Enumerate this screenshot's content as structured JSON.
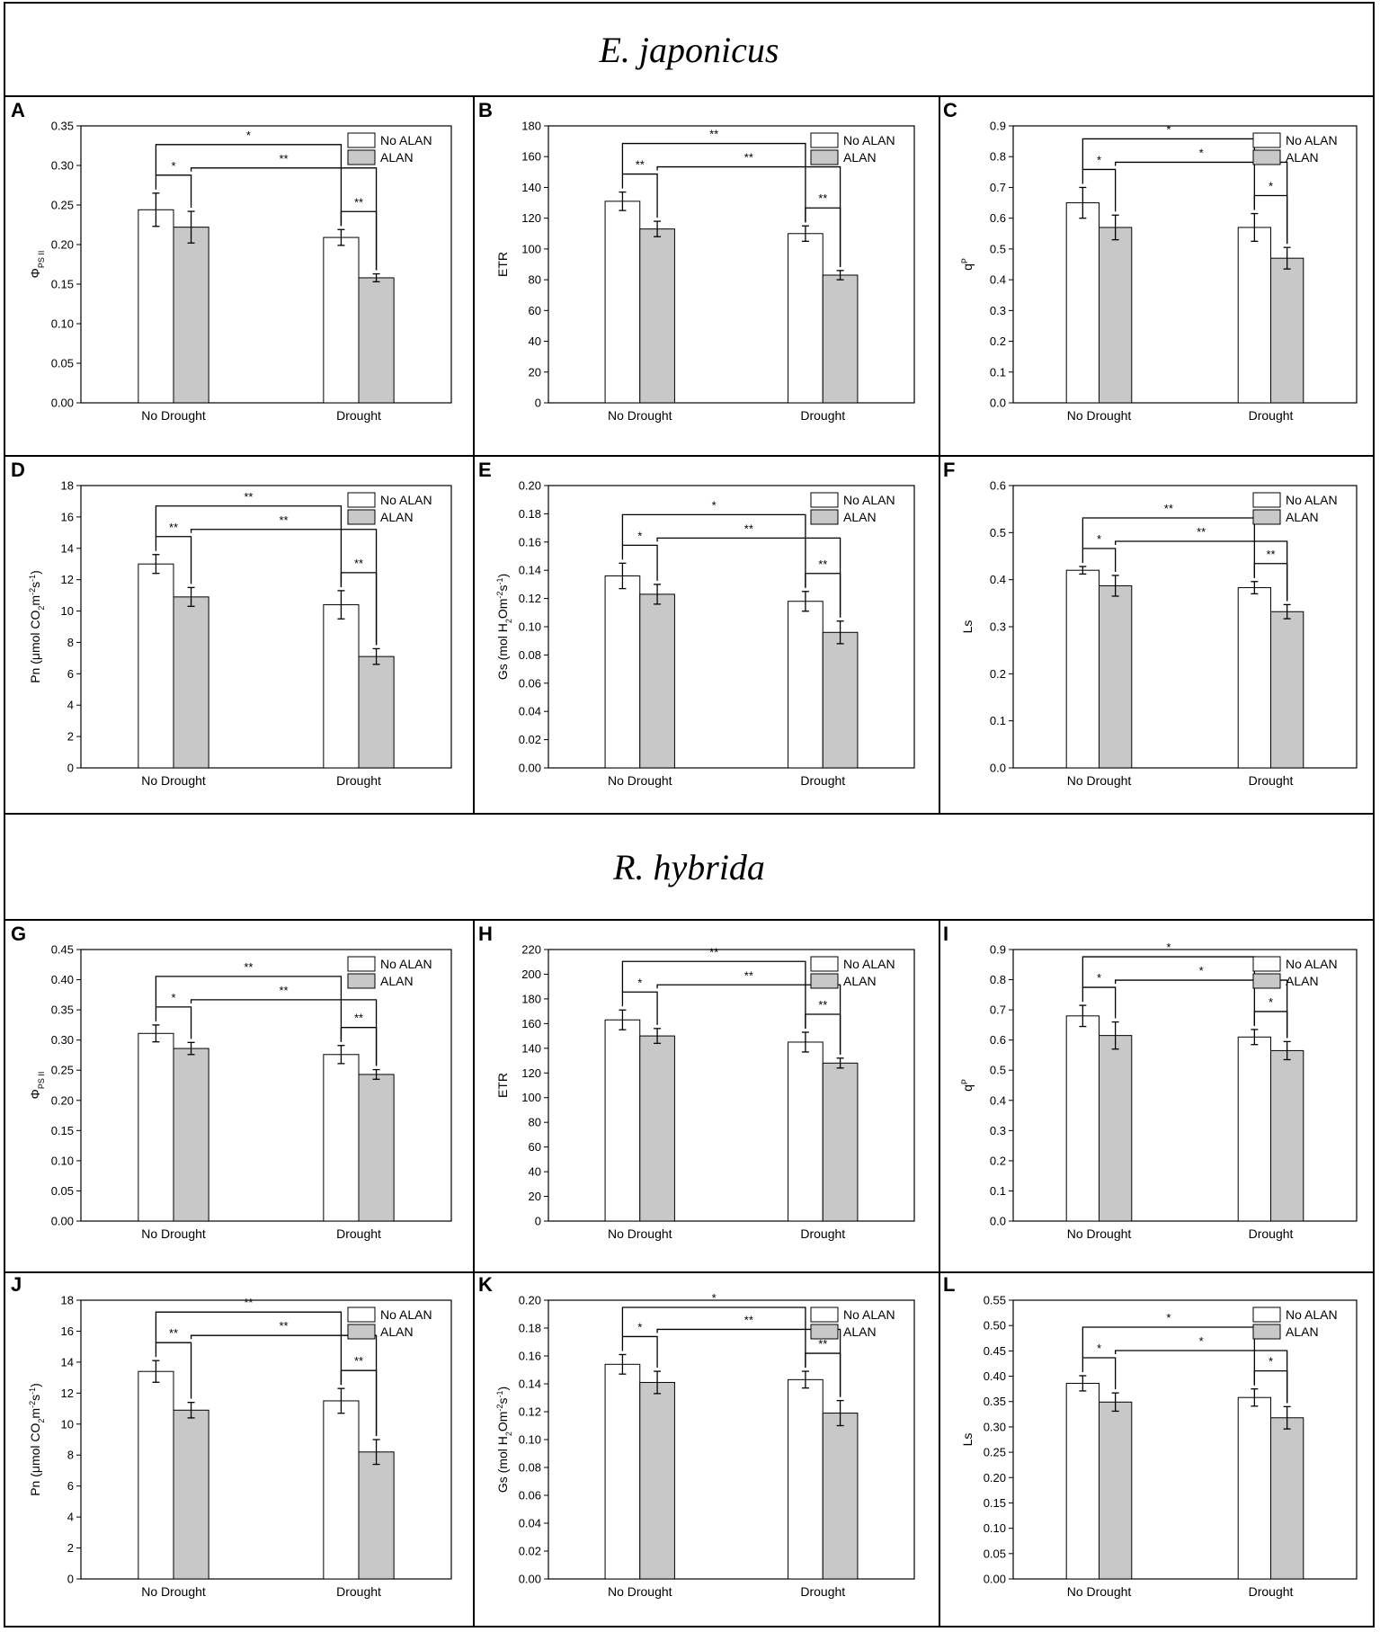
{
  "titles": [
    "E. japonicus",
    "R. hybrida"
  ],
  "legend": {
    "no_alan": "No ALAN",
    "alan": "ALAN"
  },
  "colors": {
    "no_alan_fill": "#ffffff",
    "alan_fill": "#c8c8c8",
    "line": "#000000"
  },
  "chart_data": [
    {
      "panel": "A",
      "type": "bar",
      "categories": [
        "No Drought",
        "Drought"
      ],
      "series": [
        {
          "name": "No ALAN",
          "values": [
            0.244,
            0.209
          ],
          "errors": [
            0.021,
            0.01
          ]
        },
        {
          "name": "ALAN",
          "values": [
            0.222,
            0.158
          ],
          "errors": [
            0.02,
            0.005
          ]
        }
      ],
      "ylabel": "ΦPSII",
      "ylim": [
        0,
        0.35
      ],
      "yticks": [
        "0.00",
        "0.05",
        "0.10",
        "0.15",
        "0.20",
        "0.25",
        "0.30",
        "0.35"
      ],
      "sig": [
        "*",
        "*",
        "**",
        "**"
      ]
    },
    {
      "panel": "B",
      "type": "bar",
      "categories": [
        "No Drought",
        "Drought"
      ],
      "series": [
        {
          "name": "No ALAN",
          "values": [
            131,
            110
          ],
          "errors": [
            6,
            5
          ]
        },
        {
          "name": "ALAN",
          "values": [
            113,
            83
          ],
          "errors": [
            5,
            3
          ]
        }
      ],
      "ylabel": "ETR",
      "ylim": [
        0,
        180
      ],
      "yticks": [
        "0",
        "20",
        "40",
        "60",
        "80",
        "100",
        "120",
        "140",
        "160",
        "180"
      ],
      "sig": [
        "**",
        "**",
        "**",
        "**"
      ]
    },
    {
      "panel": "C",
      "type": "bar",
      "categories": [
        "No Drought",
        "Drought"
      ],
      "series": [
        {
          "name": "No ALAN",
          "values": [
            0.65,
            0.57
          ],
          "errors": [
            0.05,
            0.045
          ]
        },
        {
          "name": "ALAN",
          "values": [
            0.57,
            0.47
          ],
          "errors": [
            0.04,
            0.035
          ]
        }
      ],
      "ylabel": "qP",
      "ylim": [
        0,
        0.9
      ],
      "yticks": [
        "0.0",
        "0.1",
        "0.2",
        "0.3",
        "0.4",
        "0.5",
        "0.6",
        "0.7",
        "0.8",
        "0.9"
      ],
      "sig": [
        "*",
        "*",
        "*",
        "*"
      ]
    },
    {
      "panel": "D",
      "type": "bar",
      "categories": [
        "No Drought",
        "Drought"
      ],
      "series": [
        {
          "name": "No ALAN",
          "values": [
            13.0,
            10.4
          ],
          "errors": [
            0.6,
            0.9
          ]
        },
        {
          "name": "ALAN",
          "values": [
            10.9,
            7.1
          ],
          "errors": [
            0.6,
            0.5
          ]
        }
      ],
      "ylabel": "Pn (μmol CO2m-2s-1)",
      "ylim": [
        0,
        18
      ],
      "yticks": [
        "0",
        "2",
        "4",
        "6",
        "8",
        "10",
        "12",
        "14",
        "16",
        "18"
      ],
      "sig": [
        "**",
        "**",
        "**",
        "**"
      ]
    },
    {
      "panel": "E",
      "type": "bar",
      "categories": [
        "No Drought",
        "Drought"
      ],
      "series": [
        {
          "name": "No ALAN",
          "values": [
            0.136,
            0.118
          ],
          "errors": [
            0.009,
            0.007
          ]
        },
        {
          "name": "ALAN",
          "values": [
            0.123,
            0.096
          ],
          "errors": [
            0.007,
            0.008
          ]
        }
      ],
      "ylabel": "Gs (mol H2Om-2s-1)",
      "ylim": [
        0,
        0.2
      ],
      "yticks": [
        "0.00",
        "0.02",
        "0.04",
        "0.06",
        "0.08",
        "0.10",
        "0.12",
        "0.14",
        "0.16",
        "0.18",
        "0.20"
      ],
      "sig": [
        "*",
        "*",
        "**",
        "**"
      ]
    },
    {
      "panel": "F",
      "type": "bar",
      "categories": [
        "No Drought",
        "Drought"
      ],
      "series": [
        {
          "name": "No ALAN",
          "values": [
            0.42,
            0.383
          ],
          "errors": [
            0.008,
            0.013
          ]
        },
        {
          "name": "ALAN",
          "values": [
            0.387,
            0.332
          ],
          "errors": [
            0.022,
            0.015
          ]
        }
      ],
      "ylabel": "Ls",
      "ylim": [
        0,
        0.6
      ],
      "yticks": [
        "0.0",
        "0.1",
        "0.2",
        "0.3",
        "0.4",
        "0.5",
        "0.6"
      ],
      "sig": [
        "*",
        "**",
        "**",
        "**"
      ]
    },
    {
      "panel": "G",
      "type": "bar",
      "categories": [
        "No Drought",
        "Drought"
      ],
      "series": [
        {
          "name": "No ALAN",
          "values": [
            0.311,
            0.276
          ],
          "errors": [
            0.014,
            0.015
          ]
        },
        {
          "name": "ALAN",
          "values": [
            0.286,
            0.243
          ],
          "errors": [
            0.01,
            0.008
          ]
        }
      ],
      "ylabel": "ΦPSII",
      "ylim": [
        0,
        0.45
      ],
      "yticks": [
        "0.00",
        "0.05",
        "0.10",
        "0.15",
        "0.20",
        "0.25",
        "0.30",
        "0.35",
        "0.40",
        "0.45"
      ],
      "sig": [
        "*",
        "**",
        "**",
        "**"
      ]
    },
    {
      "panel": "H",
      "type": "bar",
      "categories": [
        "No Drought",
        "Drought"
      ],
      "series": [
        {
          "name": "No ALAN",
          "values": [
            163,
            145
          ],
          "errors": [
            8,
            8
          ]
        },
        {
          "name": "ALAN",
          "values": [
            150,
            128
          ],
          "errors": [
            6,
            4
          ]
        }
      ],
      "ylabel": "ETR",
      "ylim": [
        0,
        220
      ],
      "yticks": [
        "0",
        "20",
        "40",
        "60",
        "80",
        "100",
        "120",
        "140",
        "160",
        "180",
        "200",
        "220"
      ],
      "sig": [
        "*",
        "**",
        "**",
        "**"
      ]
    },
    {
      "panel": "I",
      "type": "bar",
      "categories": [
        "No Drought",
        "Drought"
      ],
      "series": [
        {
          "name": "No ALAN",
          "values": [
            0.68,
            0.61
          ],
          "errors": [
            0.035,
            0.025
          ]
        },
        {
          "name": "ALAN",
          "values": [
            0.615,
            0.565
          ],
          "errors": [
            0.045,
            0.03
          ]
        }
      ],
      "ylabel": "qP",
      "ylim": [
        0,
        0.9
      ],
      "yticks": [
        "0.0",
        "0.1",
        "0.2",
        "0.3",
        "0.4",
        "0.5",
        "0.6",
        "0.7",
        "0.8",
        "0.9"
      ],
      "sig": [
        "*",
        "*",
        "*",
        "*"
      ]
    },
    {
      "panel": "J",
      "type": "bar",
      "categories": [
        "No Drought",
        "Drought"
      ],
      "series": [
        {
          "name": "No ALAN",
          "values": [
            13.4,
            11.5
          ],
          "errors": [
            0.7,
            0.8
          ]
        },
        {
          "name": "ALAN",
          "values": [
            10.9,
            8.2
          ],
          "errors": [
            0.5,
            0.8
          ]
        }
      ],
      "ylabel": "Pn (μmol CO2m-2s-1)",
      "ylim": [
        0,
        18
      ],
      "yticks": [
        "0",
        "2",
        "4",
        "6",
        "8",
        "10",
        "12",
        "14",
        "16",
        "18"
      ],
      "sig": [
        "**",
        "**",
        "**",
        "**"
      ]
    },
    {
      "panel": "K",
      "type": "bar",
      "categories": [
        "No Drought",
        "Drought"
      ],
      "series": [
        {
          "name": "No ALAN",
          "values": [
            0.154,
            0.143
          ],
          "errors": [
            0.007,
            0.006
          ]
        },
        {
          "name": "ALAN",
          "values": [
            0.141,
            0.119
          ],
          "errors": [
            0.008,
            0.009
          ]
        }
      ],
      "ylabel": "Gs (mol H2Om-2s-1)",
      "ylim": [
        0,
        0.2
      ],
      "yticks": [
        "0.00",
        "0.02",
        "0.04",
        "0.06",
        "0.08",
        "0.10",
        "0.12",
        "0.14",
        "0.16",
        "0.18",
        "0.20"
      ],
      "sig": [
        "*",
        "*",
        "**",
        "**"
      ]
    },
    {
      "panel": "L",
      "type": "bar",
      "categories": [
        "No Drought",
        "Drought"
      ],
      "series": [
        {
          "name": "No ALAN",
          "values": [
            0.386,
            0.358
          ],
          "errors": [
            0.015,
            0.017
          ]
        },
        {
          "name": "ALAN",
          "values": [
            0.349,
            0.318
          ],
          "errors": [
            0.018,
            0.022
          ]
        }
      ],
      "ylabel": "Ls",
      "ylim": [
        0,
        0.55
      ],
      "yticks": [
        "0.00",
        "0.05",
        "0.10",
        "0.15",
        "0.20",
        "0.25",
        "0.30",
        "0.35",
        "0.40",
        "0.45",
        "0.50",
        "0.55"
      ],
      "sig": [
        "*",
        "*",
        "*",
        "*"
      ]
    }
  ]
}
